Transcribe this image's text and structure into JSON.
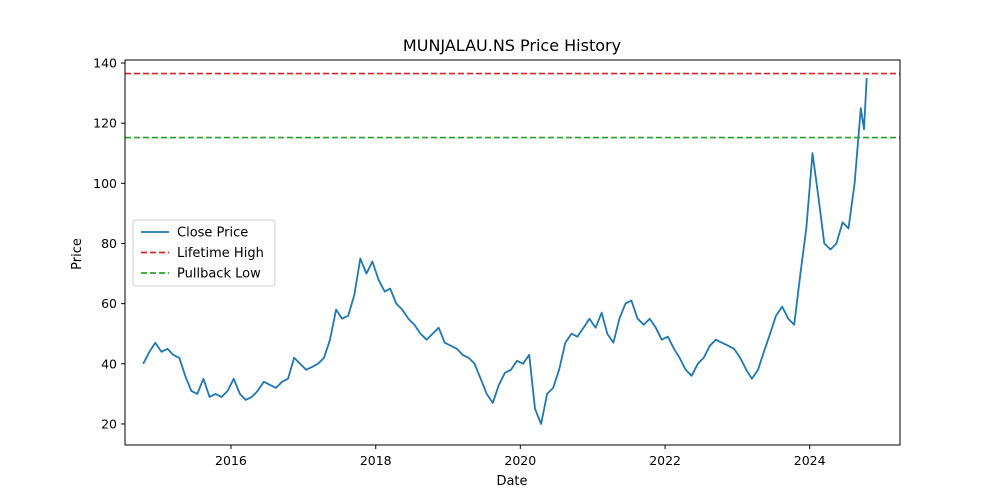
{
  "chart_data": {
    "type": "line",
    "title": "MUNJALAU.NS Price History",
    "xlabel": "Date",
    "ylabel": "Price",
    "xlim": [
      "2014-07-15",
      "2025-04-01"
    ],
    "ylim": [
      13,
      141
    ],
    "x_ticks": [
      "2016",
      "2018",
      "2020",
      "2022",
      "2024"
    ],
    "y_ticks": [
      20,
      40,
      60,
      80,
      100,
      120,
      140
    ],
    "grid": false,
    "legend_position": "center-left",
    "series": [
      {
        "name": "Close Price",
        "color": "#1f77b4",
        "style": "solid",
        "points": [
          [
            "2014-10-15",
            40
          ],
          [
            "2014-11-15",
            44
          ],
          [
            "2014-12-15",
            47
          ],
          [
            "2015-01-15",
            44
          ],
          [
            "2015-02-15",
            45
          ],
          [
            "2015-03-15",
            43
          ],
          [
            "2015-04-15",
            42
          ],
          [
            "2015-05-15",
            36
          ],
          [
            "2015-06-15",
            31
          ],
          [
            "2015-07-15",
            30
          ],
          [
            "2015-08-15",
            35
          ],
          [
            "2015-09-15",
            29
          ],
          [
            "2015-10-15",
            30
          ],
          [
            "2015-11-15",
            29
          ],
          [
            "2015-12-15",
            31
          ],
          [
            "2016-01-15",
            35
          ],
          [
            "2016-02-15",
            30
          ],
          [
            "2016-03-15",
            28
          ],
          [
            "2016-04-15",
            29
          ],
          [
            "2016-05-15",
            31
          ],
          [
            "2016-06-15",
            34
          ],
          [
            "2016-07-15",
            33
          ],
          [
            "2016-08-15",
            32
          ],
          [
            "2016-09-15",
            34
          ],
          [
            "2016-10-15",
            35
          ],
          [
            "2016-11-15",
            42
          ],
          [
            "2016-12-15",
            40
          ],
          [
            "2017-01-15",
            38
          ],
          [
            "2017-02-15",
            39
          ],
          [
            "2017-03-15",
            40
          ],
          [
            "2017-04-15",
            42
          ],
          [
            "2017-05-15",
            48
          ],
          [
            "2017-06-15",
            58
          ],
          [
            "2017-07-15",
            55
          ],
          [
            "2017-08-15",
            56
          ],
          [
            "2017-09-15",
            63
          ],
          [
            "2017-10-15",
            75
          ],
          [
            "2017-11-15",
            70
          ],
          [
            "2017-12-15",
            74
          ],
          [
            "2018-01-15",
            68
          ],
          [
            "2018-02-15",
            64
          ],
          [
            "2018-03-15",
            65
          ],
          [
            "2018-04-15",
            60
          ],
          [
            "2018-05-15",
            58
          ],
          [
            "2018-06-15",
            55
          ],
          [
            "2018-07-15",
            53
          ],
          [
            "2018-08-15",
            50
          ],
          [
            "2018-09-15",
            48
          ],
          [
            "2018-10-15",
            50
          ],
          [
            "2018-11-15",
            52
          ],
          [
            "2018-12-15",
            47
          ],
          [
            "2019-01-15",
            46
          ],
          [
            "2019-02-15",
            45
          ],
          [
            "2019-03-15",
            43
          ],
          [
            "2019-04-15",
            42
          ],
          [
            "2019-05-15",
            40
          ],
          [
            "2019-06-15",
            35
          ],
          [
            "2019-07-15",
            30
          ],
          [
            "2019-08-15",
            27
          ],
          [
            "2019-09-15",
            33
          ],
          [
            "2019-10-15",
            37
          ],
          [
            "2019-11-15",
            38
          ],
          [
            "2019-12-15",
            41
          ],
          [
            "2020-01-15",
            40
          ],
          [
            "2020-02-15",
            43
          ],
          [
            "2020-03-15",
            25
          ],
          [
            "2020-04-15",
            20
          ],
          [
            "2020-05-15",
            30
          ],
          [
            "2020-06-15",
            32
          ],
          [
            "2020-07-15",
            38
          ],
          [
            "2020-08-15",
            47
          ],
          [
            "2020-09-15",
            50
          ],
          [
            "2020-10-15",
            49
          ],
          [
            "2020-11-15",
            52
          ],
          [
            "2020-12-15",
            55
          ],
          [
            "2021-01-15",
            52
          ],
          [
            "2021-02-15",
            57
          ],
          [
            "2021-03-15",
            50
          ],
          [
            "2021-04-15",
            47
          ],
          [
            "2021-05-15",
            55
          ],
          [
            "2021-06-15",
            60
          ],
          [
            "2021-07-15",
            61
          ],
          [
            "2021-08-15",
            55
          ],
          [
            "2021-09-15",
            53
          ],
          [
            "2021-10-15",
            55
          ],
          [
            "2021-11-15",
            52
          ],
          [
            "2021-12-15",
            48
          ],
          [
            "2022-01-15",
            49
          ],
          [
            "2022-02-15",
            45
          ],
          [
            "2022-03-15",
            42
          ],
          [
            "2022-04-15",
            38
          ],
          [
            "2022-05-15",
            36
          ],
          [
            "2022-06-15",
            40
          ],
          [
            "2022-07-15",
            42
          ],
          [
            "2022-08-15",
            46
          ],
          [
            "2022-09-15",
            48
          ],
          [
            "2022-10-15",
            47
          ],
          [
            "2022-11-15",
            46
          ],
          [
            "2022-12-15",
            45
          ],
          [
            "2023-01-15",
            42
          ],
          [
            "2023-02-15",
            38
          ],
          [
            "2023-03-15",
            35
          ],
          [
            "2023-04-15",
            38
          ],
          [
            "2023-05-15",
            44
          ],
          [
            "2023-06-15",
            50
          ],
          [
            "2023-07-15",
            56
          ],
          [
            "2023-08-15",
            59
          ],
          [
            "2023-09-15",
            55
          ],
          [
            "2023-10-15",
            53
          ],
          [
            "2023-11-15",
            70
          ],
          [
            "2023-12-15",
            85
          ],
          [
            "2024-01-15",
            110
          ],
          [
            "2024-02-15",
            95
          ],
          [
            "2024-03-15",
            80
          ],
          [
            "2024-04-15",
            78
          ],
          [
            "2024-05-15",
            80
          ],
          [
            "2024-06-15",
            87
          ],
          [
            "2024-07-15",
            85
          ],
          [
            "2024-08-15",
            100
          ],
          [
            "2024-09-15",
            125
          ],
          [
            "2024-10-01",
            118
          ],
          [
            "2024-10-15",
            135
          ]
        ]
      }
    ],
    "reference_lines": [
      {
        "name": "Lifetime High",
        "value": 136.5,
        "color": "#d62728",
        "style": "dashed"
      },
      {
        "name": "Pullback Low",
        "value": 115.2,
        "color": "#2ca02c",
        "style": "dashed"
      }
    ]
  }
}
